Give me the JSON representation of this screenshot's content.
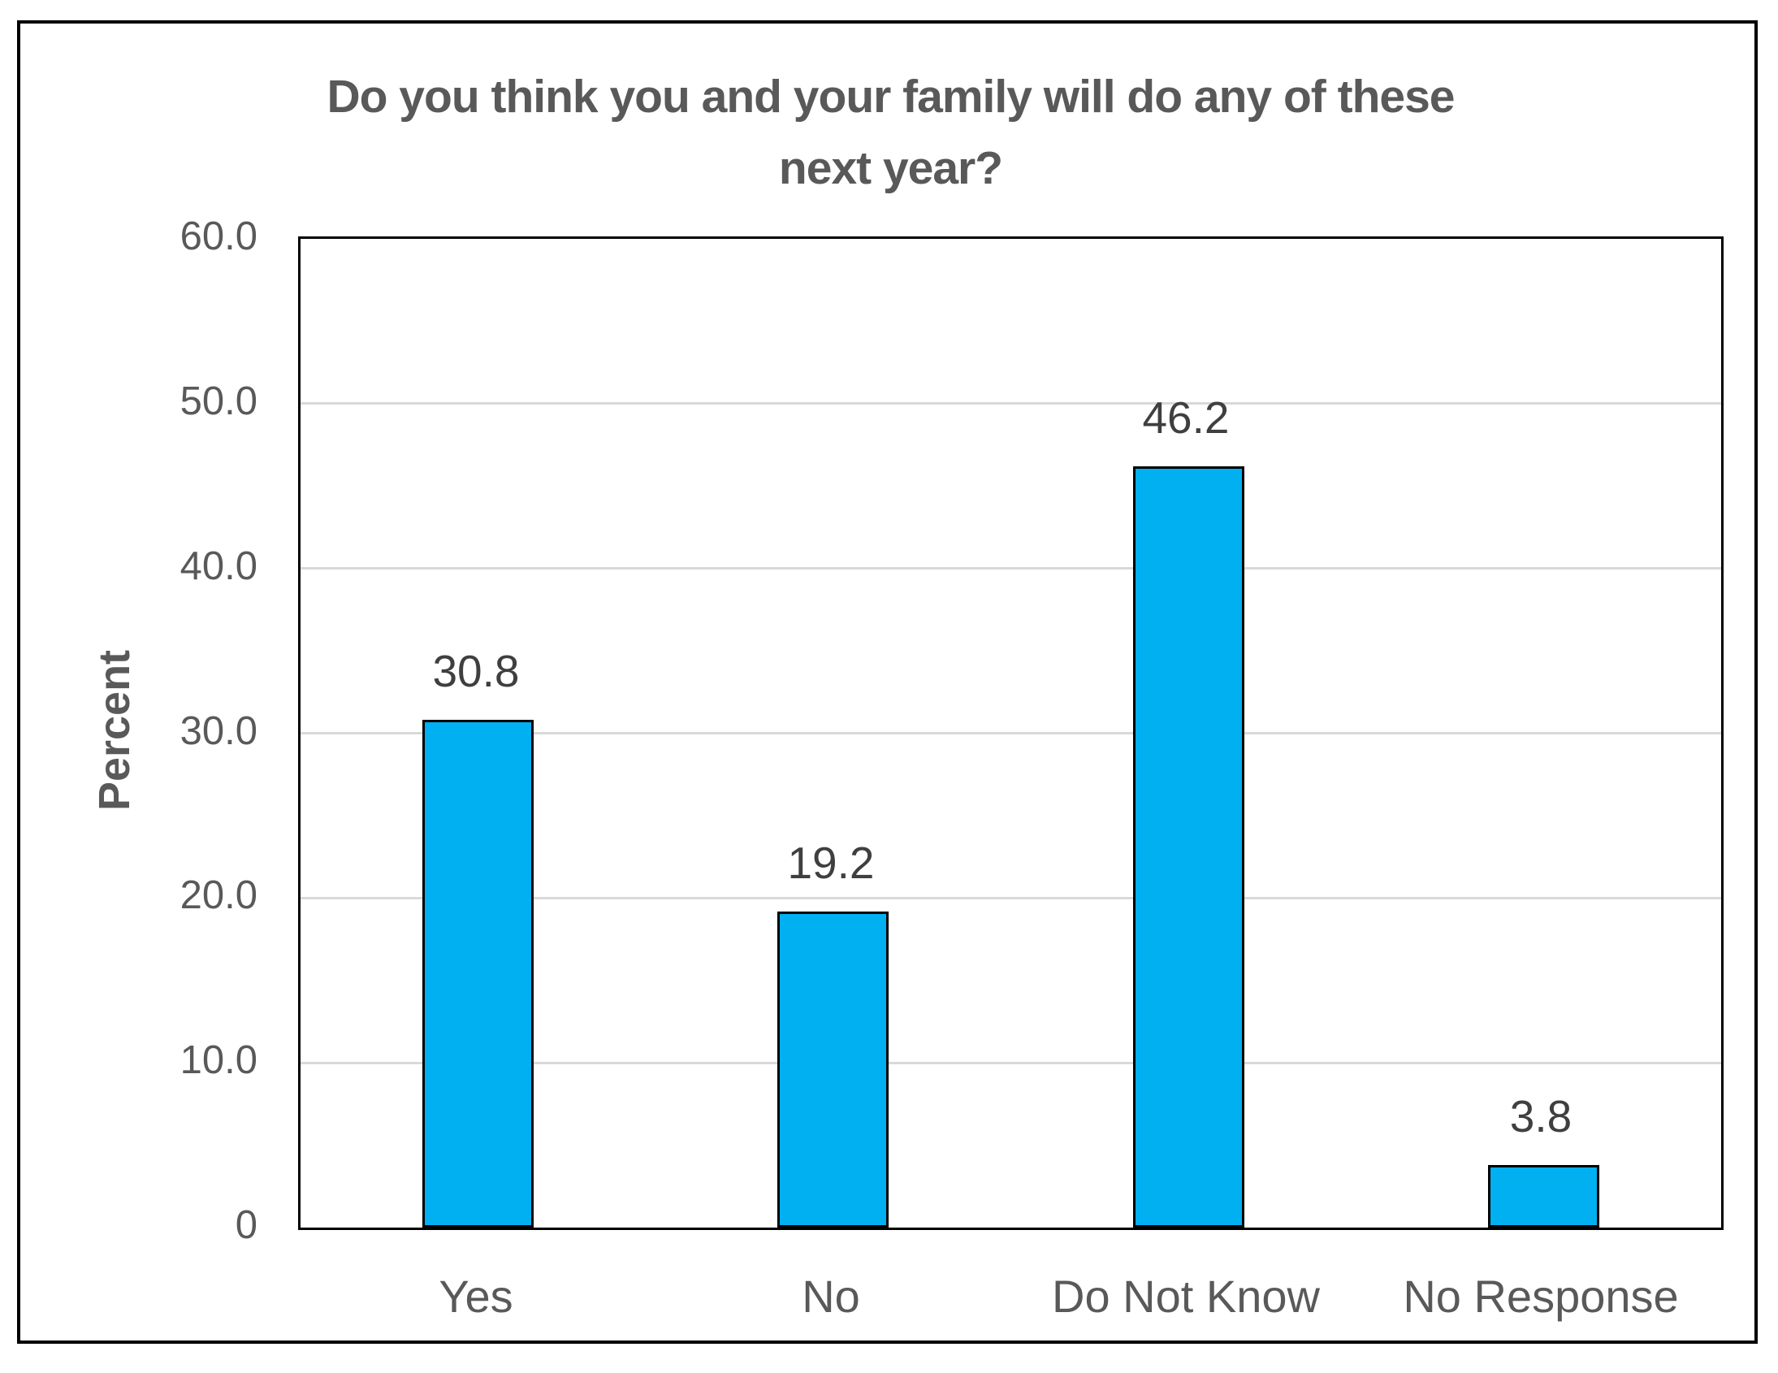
{
  "chart_data": {
    "type": "bar",
    "title": "Do you think you and your family will do any of these next year?",
    "title_lines": [
      "Do you think you and your family will do any of these",
      "next year?"
    ],
    "categories": [
      "Yes",
      "No",
      "Do Not Know",
      "No Response"
    ],
    "values": [
      30.8,
      19.2,
      46.2,
      3.8
    ],
    "data_labels": [
      "30.8",
      "19.2",
      "46.2",
      "3.8"
    ],
    "xlabel": "",
    "ylabel": "Percent",
    "ylim": [
      0,
      60
    ],
    "ytick_step": 10,
    "ytick_labels": [
      "60.0",
      "50.0",
      "40.0",
      "30.0",
      "20.0",
      "10.0",
      "0"
    ],
    "grid": true,
    "legend": false,
    "colors": {
      "bar_fill": "#00B0F0",
      "bar_border": "#000000",
      "gridline": "#D9D9D9",
      "plot_border": "#000000",
      "frame_border": "#000000",
      "title_text": "#595959",
      "axis_text": "#595959",
      "data_label_text": "#3F3F3F",
      "background": "#FFFFFF"
    }
  }
}
